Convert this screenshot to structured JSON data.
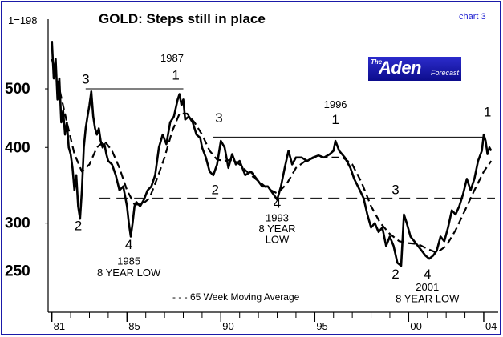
{
  "title": "GOLD: Steps still in place",
  "chart_id": "chart 3",
  "legend": "- - - 65 Week Moving Average",
  "logo": {
    "the": "The",
    "name": "Aden",
    "sub": "Forecast"
  },
  "colors": {
    "frame": "#1a1aa8",
    "chart_id": "#1a1ad0",
    "logo_bg": "#1c1cac",
    "line": "#000000"
  },
  "chart_data": {
    "type": "line",
    "xlabel": "",
    "ylabel": "",
    "y_scale": "log",
    "xlim": [
      1980.8,
      2004.6
    ],
    "ylim": [
      215,
      640
    ],
    "y_ticks": [
      250,
      300,
      400,
      500
    ],
    "x_ticks": [
      {
        "value": 1981,
        "label": "81"
      },
      {
        "value": 1985,
        "label": "85"
      },
      {
        "value": 1990,
        "label": "90"
      },
      {
        "value": 1995,
        "label": "95"
      },
      {
        "value": 2000,
        "label": "00"
      },
      {
        "value": 2004,
        "label": "04"
      }
    ],
    "series": [
      {
        "style": "solid",
        "values": [
          [
            1981.0,
            600
          ],
          [
            1981.1,
            520
          ],
          [
            1981.2,
            560
          ],
          [
            1981.3,
            480
          ],
          [
            1981.4,
            520
          ],
          [
            1981.5,
            440
          ],
          [
            1981.6,
            460
          ],
          [
            1981.7,
            420
          ],
          [
            1981.8,
            440
          ],
          [
            1981.9,
            400
          ],
          [
            1982.0,
            390
          ],
          [
            1982.1,
            370
          ],
          [
            1982.2,
            340
          ],
          [
            1982.3,
            360
          ],
          [
            1982.4,
            320
          ],
          [
            1982.5,
            305
          ],
          [
            1982.6,
            340
          ],
          [
            1982.7,
            400
          ],
          [
            1982.8,
            430
          ],
          [
            1982.9,
            450
          ],
          [
            1983.0,
            470
          ],
          [
            1983.1,
            495
          ],
          [
            1983.2,
            450
          ],
          [
            1983.3,
            430
          ],
          [
            1983.4,
            420
          ],
          [
            1983.5,
            430
          ],
          [
            1983.6,
            410
          ],
          [
            1983.7,
            400
          ],
          [
            1983.8,
            405
          ],
          [
            1983.9,
            390
          ],
          [
            1984.0,
            380
          ],
          [
            1984.2,
            375
          ],
          [
            1984.4,
            360
          ],
          [
            1984.6,
            340
          ],
          [
            1984.8,
            345
          ],
          [
            1985.0,
            320
          ],
          [
            1985.1,
            300
          ],
          [
            1985.2,
            285
          ],
          [
            1985.3,
            300
          ],
          [
            1985.4,
            320
          ],
          [
            1985.5,
            325
          ],
          [
            1985.7,
            320
          ],
          [
            1985.9,
            328
          ],
          [
            1986.1,
            340
          ],
          [
            1986.3,
            345
          ],
          [
            1986.5,
            360
          ],
          [
            1986.7,
            400
          ],
          [
            1986.9,
            420
          ],
          [
            1987.1,
            405
          ],
          [
            1987.3,
            440
          ],
          [
            1987.5,
            450
          ],
          [
            1987.7,
            480
          ],
          [
            1987.8,
            490
          ],
          [
            1987.9,
            470
          ],
          [
            1988.0,
            480
          ],
          [
            1988.1,
            445
          ],
          [
            1988.3,
            450
          ],
          [
            1988.5,
            440
          ],
          [
            1988.7,
            420
          ],
          [
            1988.9,
            415
          ],
          [
            1989.0,
            400
          ],
          [
            1989.2,
            385
          ],
          [
            1989.4,
            365
          ],
          [
            1989.6,
            360
          ],
          [
            1989.8,
            375
          ],
          [
            1990.0,
            410
          ],
          [
            1990.2,
            400
          ],
          [
            1990.4,
            370
          ],
          [
            1990.6,
            390
          ],
          [
            1990.8,
            375
          ],
          [
            1991.0,
            380
          ],
          [
            1991.3,
            360
          ],
          [
            1991.6,
            365
          ],
          [
            1991.9,
            355
          ],
          [
            1992.2,
            345
          ],
          [
            1992.5,
            345
          ],
          [
            1992.8,
            335
          ],
          [
            1993.0,
            328
          ],
          [
            1993.2,
            345
          ],
          [
            1993.4,
            370
          ],
          [
            1993.6,
            395
          ],
          [
            1993.8,
            375
          ],
          [
            1994.0,
            385
          ],
          [
            1994.3,
            385
          ],
          [
            1994.6,
            380
          ],
          [
            1994.9,
            385
          ],
          [
            1995.2,
            388
          ],
          [
            1995.5,
            385
          ],
          [
            1995.8,
            390
          ],
          [
            1996.0,
            395
          ],
          [
            1996.1,
            410
          ],
          [
            1996.3,
            395
          ],
          [
            1996.6,
            385
          ],
          [
            1996.9,
            370
          ],
          [
            1997.1,
            355
          ],
          [
            1997.4,
            340
          ],
          [
            1997.6,
            330
          ],
          [
            1997.8,
            310
          ],
          [
            1998.0,
            295
          ],
          [
            1998.2,
            300
          ],
          [
            1998.4,
            290
          ],
          [
            1998.6,
            295
          ],
          [
            1998.8,
            275
          ],
          [
            1999.0,
            285
          ],
          [
            1999.2,
            275
          ],
          [
            1999.4,
            258
          ],
          [
            1999.6,
            255
          ],
          [
            1999.75,
            310
          ],
          [
            1999.9,
            300
          ],
          [
            2000.1,
            285
          ],
          [
            2000.3,
            280
          ],
          [
            2000.5,
            275
          ],
          [
            2000.7,
            270
          ],
          [
            2000.9,
            265
          ],
          [
            2001.1,
            262
          ],
          [
            2001.3,
            265
          ],
          [
            2001.5,
            270
          ],
          [
            2001.7,
            285
          ],
          [
            2001.9,
            280
          ],
          [
            2002.1,
            295
          ],
          [
            2002.3,
            315
          ],
          [
            2002.5,
            310
          ],
          [
            2002.7,
            320
          ],
          [
            2002.9,
            335
          ],
          [
            2003.1,
            355
          ],
          [
            2003.3,
            340
          ],
          [
            2003.5,
            355
          ],
          [
            2003.7,
            380
          ],
          [
            2003.9,
            395
          ],
          [
            2004.0,
            420
          ],
          [
            2004.1,
            410
          ],
          [
            2004.2,
            390
          ],
          [
            2004.3,
            400
          ],
          [
            2004.4,
            395
          ]
        ]
      },
      {
        "name": "65 Week Moving Average",
        "style": "dashed",
        "values": [
          [
            1981.0,
            560
          ],
          [
            1981.4,
            500
          ],
          [
            1981.8,
            440
          ],
          [
            1982.2,
            390
          ],
          [
            1982.6,
            365
          ],
          [
            1983.0,
            375
          ],
          [
            1983.4,
            400
          ],
          [
            1983.8,
            410
          ],
          [
            1984.2,
            395
          ],
          [
            1984.6,
            370
          ],
          [
            1985.0,
            340
          ],
          [
            1985.4,
            322
          ],
          [
            1985.8,
            322
          ],
          [
            1986.2,
            330
          ],
          [
            1986.6,
            355
          ],
          [
            1987.0,
            385
          ],
          [
            1987.4,
            425
          ],
          [
            1987.8,
            455
          ],
          [
            1988.2,
            455
          ],
          [
            1988.6,
            440
          ],
          [
            1989.0,
            420
          ],
          [
            1989.4,
            395
          ],
          [
            1989.8,
            382
          ],
          [
            1990.2,
            380
          ],
          [
            1990.6,
            382
          ],
          [
            1991.0,
            375
          ],
          [
            1991.5,
            362
          ],
          [
            1992.0,
            352
          ],
          [
            1992.5,
            342
          ],
          [
            1993.0,
            336
          ],
          [
            1993.5,
            348
          ],
          [
            1994.0,
            370
          ],
          [
            1994.5,
            380
          ],
          [
            1995.0,
            385
          ],
          [
            1995.5,
            385
          ],
          [
            1996.0,
            385
          ],
          [
            1996.5,
            385
          ],
          [
            1997.0,
            375
          ],
          [
            1997.5,
            350
          ],
          [
            1998.0,
            320
          ],
          [
            1998.5,
            300
          ],
          [
            1999.0,
            288
          ],
          [
            1999.5,
            280
          ],
          [
            2000.0,
            278
          ],
          [
            2000.5,
            277
          ],
          [
            2001.0,
            272
          ],
          [
            2001.5,
            268
          ],
          [
            2002.0,
            275
          ],
          [
            2002.5,
            292
          ],
          [
            2003.0,
            315
          ],
          [
            2003.5,
            340
          ],
          [
            2004.0,
            365
          ],
          [
            2004.4,
            380
          ]
        ]
      }
    ],
    "reference_lines": [
      {
        "style": "solid",
        "y": 500,
        "x": [
          1982.8,
          1988.0
        ]
      },
      {
        "style": "solid",
        "y": 416,
        "x": [
          1989.6,
          2004.0
        ]
      },
      {
        "style": "dashed",
        "y": 330,
        "x": [
          1983.5,
          2004.6
        ]
      }
    ],
    "annotations": [
      {
        "text": "1=198",
        "x": 1981.0,
        "y": 640
      },
      {
        "text": "3",
        "x": 1982.8,
        "y": 510
      },
      {
        "text": "1987",
        "x": 1987.4,
        "y": 555
      },
      {
        "text": "1",
        "x": 1987.6,
        "y": 518
      },
      {
        "text": "2",
        "x": 1982.4,
        "y": 292
      },
      {
        "text": "3",
        "x": 1989.9,
        "y": 440
      },
      {
        "text": "2",
        "x": 1989.7,
        "y": 335
      },
      {
        "text": "4",
        "x": 1985.1,
        "y": 272
      },
      {
        "text": "1985",
        "x": 1985.1,
        "y": 256
      },
      {
        "text": "8 YEAR LOW",
        "x": 1985.1,
        "y": 245
      },
      {
        "text": "4",
        "x": 1993.0,
        "y": 318
      },
      {
        "text": "1993",
        "x": 1993.0,
        "y": 302
      },
      {
        "text": "8 YEAR",
        "x": 1993.0,
        "y": 290
      },
      {
        "text": "LOW",
        "x": 1993.0,
        "y": 278
      },
      {
        "text": "1996",
        "x": 1996.1,
        "y": 465
      },
      {
        "text": "1",
        "x": 1996.1,
        "y": 437
      },
      {
        "text": "3",
        "x": 1999.3,
        "y": 335
      },
      {
        "text": "2",
        "x": 1999.3,
        "y": 243
      },
      {
        "text": "4",
        "x": 2001.0,
        "y": 243
      },
      {
        "text": "2001",
        "x": 2001.0,
        "y": 232
      },
      {
        "text": "8 YEAR LOW",
        "x": 2001.0,
        "y": 222
      },
      {
        "text": "1",
        "x": 2004.2,
        "y": 450
      }
    ]
  }
}
